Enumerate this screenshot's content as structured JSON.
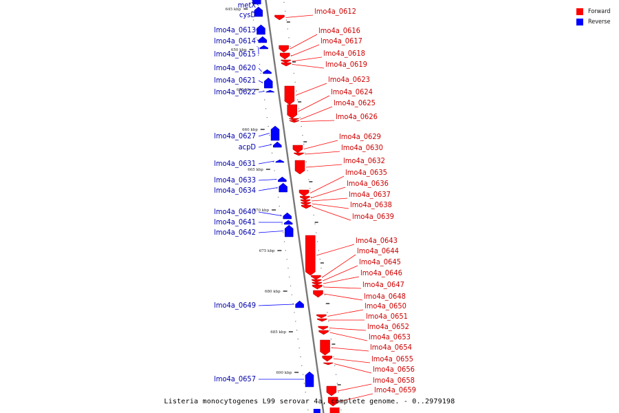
{
  "caption": "Listeria monocytogenes L99 serovar 4a, complete genome. - 0..2979198",
  "legend": [
    {
      "label": "Forward",
      "color": "#ff0000"
    },
    {
      "label": "Reverse",
      "color": "#0000ff"
    }
  ],
  "colors": {
    "forward": "#ff0000",
    "reverse": "#0000ff",
    "forward_text": "#cc0000",
    "reverse_text": "#0000aa"
  },
  "ticks": [
    "645 kbp",
    "650 kbp",
    "655 kbp",
    "660 kbp",
    "665 kbp",
    "670 kbp",
    "675 kbp",
    "680 kbp",
    "685 kbp",
    "690 kbp"
  ],
  "reverse_genes": [
    "metX",
    "cysD",
    "lmo4a_0613",
    "lmo4a_0614",
    "lmo4a_0615",
    "lmo4a_0620",
    "lmo4a_0621",
    "lmo4a_0622",
    "lmo4a_0627",
    "acpD",
    "lmo4a_0631",
    "lmo4a_0633",
    "lmo4a_0634",
    "lmo4a_0640",
    "lmo4a_0641",
    "lmo4a_0642",
    "lmo4a_0649",
    "lmo4a_0657"
  ],
  "forward_genes": [
    "lmo4a_0612",
    "lmo4a_0616",
    "lmo4a_0617",
    "lmo4a_0618",
    "lmo4a_0619",
    "lmo4a_0623",
    "lmo4a_0624",
    "lmo4a_0625",
    "lmo4a_0626",
    "lmo4a_0629",
    "lmo4a_0630",
    "lmo4a_0632",
    "lmo4a_0635",
    "lmo4a_0636",
    "lmo4a_0637",
    "lmo4a_0638",
    "lmo4a_0639",
    "lmo4a_0643",
    "lmo4a_0644",
    "lmo4a_0645",
    "lmo4a_0646",
    "lmo4a_0647",
    "lmo4a_0648",
    "lmo4a_0650",
    "lmo4a_0651",
    "lmo4a_0652",
    "lmo4a_0653",
    "lmo4a_0654",
    "lmo4a_0655",
    "lmo4a_0656",
    "lmo4a_0658",
    "lmo4a_0659"
  ]
}
